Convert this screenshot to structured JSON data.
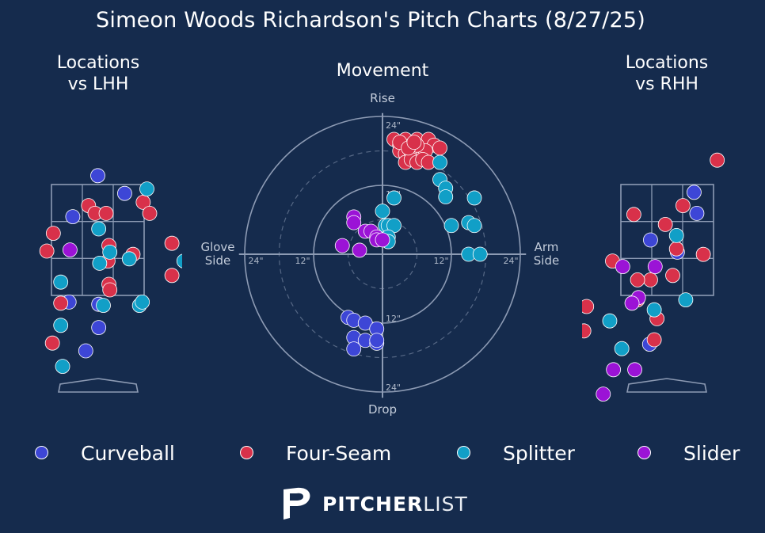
{
  "title": "Simeon Woods Richardson's Pitch Charts (8/27/25)",
  "colors": {
    "background": "#152b4d",
    "Curveball": "#3d46d6",
    "Four-Seam": "#d8314a",
    "Splitter": "#119fc7",
    "Slider": "#9b13d6",
    "grid": "#8d9bb4"
  },
  "panels": {
    "lhh_title": "Locations\nvs LHH",
    "movement_title": "Movement",
    "rhh_title": "Locations\nvs RHH"
  },
  "movement_labels": {
    "top": "Rise",
    "bottom": "Drop",
    "left": "Glove\nSide",
    "right": "Arm\nSide",
    "rings": [
      "12\"",
      "24\""
    ]
  },
  "legend": [
    {
      "name": "Curveball"
    },
    {
      "name": "Four-Seam"
    },
    {
      "name": "Splitter"
    },
    {
      "name": "Slider"
    }
  ],
  "brand": {
    "bold": "PITCHER",
    "light": "LIST"
  },
  "chart_data": [
    {
      "type": "scatter",
      "title": "Locations vs LHH",
      "units": "catcher view, horizontal x and vertical y in strike-zone box units (box spans x 0-1, y 0-1)",
      "series": [
        {
          "name": "Curveball",
          "points": [
            [
              0.5,
              1.08
            ],
            [
              0.79,
              0.92
            ],
            [
              0.23,
              0.71
            ],
            [
              0.19,
              -0.06
            ],
            [
              0.51,
              -0.08
            ],
            [
              0.51,
              -0.29
            ],
            [
              0.37,
              -0.5
            ]
          ]
        },
        {
          "name": "Four-Seam",
          "points": [
            [
              0.4,
              0.81
            ],
            [
              0.47,
              0.74
            ],
            [
              0.59,
              0.74
            ],
            [
              0.99,
              0.84
            ],
            [
              1.06,
              0.74
            ],
            [
              0.02,
              0.56
            ],
            [
              0.62,
              0.45
            ],
            [
              1.3,
              0.47
            ],
            [
              -0.05,
              0.4
            ],
            [
              0.88,
              0.37
            ],
            [
              0.61,
              0.31
            ],
            [
              0.62,
              0.1
            ],
            [
              0.63,
              0.05
            ],
            [
              0.1,
              -0.07
            ],
            [
              1.3,
              0.18
            ],
            [
              0.01,
              -0.43
            ]
          ]
        },
        {
          "name": "Splitter",
          "points": [
            [
              1.03,
              0.96
            ],
            [
              0.51,
              0.6
            ],
            [
              0.63,
              0.39
            ],
            [
              0.52,
              0.29
            ],
            [
              0.84,
              0.33
            ],
            [
              0.1,
              0.12
            ],
            [
              0.56,
              -0.09
            ],
            [
              0.95,
              -0.09
            ],
            [
              0.98,
              -0.06
            ],
            [
              0.1,
              -0.27
            ],
            [
              0.12,
              -0.64
            ],
            [
              1.43,
              0.31
            ]
          ]
        },
        {
          "name": "Slider",
          "points": [
            [
              0.2,
              0.41
            ]
          ]
        }
      ]
    },
    {
      "type": "scatter",
      "title": "Movement",
      "units": "inches, x positive = arm side, y positive = rise",
      "rings": [
        12,
        24
      ],
      "series": [
        {
          "name": "Curveball",
          "points": [
            [
              -6,
              -11
            ],
            [
              -5,
              -11.5
            ],
            [
              -3,
              -12
            ],
            [
              -1,
              -13
            ],
            [
              -5,
              -14.5
            ],
            [
              -3,
              -15
            ],
            [
              -1,
              -15.5
            ],
            [
              -5,
              -16.5
            ],
            [
              -1,
              -15
            ]
          ]
        },
        {
          "name": "Four-Seam",
          "points": [
            [
              2,
              20
            ],
            [
              3,
              19
            ],
            [
              4,
              20
            ],
            [
              5,
              19
            ],
            [
              6,
              20
            ],
            [
              8,
              20
            ],
            [
              9,
              19
            ],
            [
              10,
              18.5
            ],
            [
              3,
              18
            ],
            [
              4,
              17.5
            ],
            [
              5,
              17
            ],
            [
              6,
              18
            ],
            [
              7,
              17
            ],
            [
              7.5,
              18
            ],
            [
              4,
              16
            ],
            [
              5,
              16.5
            ],
            [
              6,
              16
            ],
            [
              7,
              16.5
            ],
            [
              8,
              16
            ],
            [
              3,
              19.5
            ],
            [
              6,
              19
            ],
            [
              4.5,
              18.5
            ],
            [
              5.5,
              19.5
            ]
          ]
        },
        {
          "name": "Splitter",
          "points": [
            [
              10,
              13
            ],
            [
              11,
              11.5
            ],
            [
              11,
              10
            ],
            [
              16,
              9.8
            ],
            [
              2,
              9.8
            ],
            [
              12,
              5
            ],
            [
              15,
              5.5
            ],
            [
              16,
              5
            ],
            [
              15,
              0
            ],
            [
              17,
              0
            ],
            [
              0,
              7.5
            ],
            [
              0.5,
              5
            ],
            [
              1,
              5
            ],
            [
              2,
              5
            ],
            [
              1,
              3
            ],
            [
              1,
              2.2
            ],
            [
              10,
              16
            ]
          ]
        },
        {
          "name": "Slider",
          "points": [
            [
              -5,
              6.5
            ],
            [
              -5,
              5.5
            ],
            [
              -3,
              4
            ],
            [
              -2,
              4
            ],
            [
              -1,
              3
            ],
            [
              -1,
              2.5
            ],
            [
              0,
              2.5
            ],
            [
              -7,
              1.5
            ],
            [
              -4,
              0.7
            ]
          ]
        }
      ]
    },
    {
      "type": "scatter",
      "title": "Locations vs RHH",
      "units": "catcher view, horizontal x and vertical y in strike-zone box units (box spans x 0-1, y 0-1)",
      "series": [
        {
          "name": "Curveball",
          "points": [
            [
              0.79,
              0.93
            ],
            [
              0.82,
              0.74
            ],
            [
              0.32,
              0.5
            ],
            [
              0.61,
              0.39
            ],
            [
              0.31,
              -0.44
            ]
          ]
        },
        {
          "name": "Four-Seam",
          "points": [
            [
              1.04,
              1.22
            ],
            [
              0.67,
              0.81
            ],
            [
              0.14,
              0.73
            ],
            [
              0.48,
              0.64
            ],
            [
              0.6,
              0.42
            ],
            [
              0.89,
              0.37
            ],
            [
              -0.09,
              0.31
            ],
            [
              0.32,
              0.14
            ],
            [
              0.56,
              0.18
            ],
            [
              0.18,
              0.14
            ],
            [
              -0.37,
              -0.1
            ],
            [
              0.18,
              -0.04
            ],
            [
              0.39,
              -0.21
            ],
            [
              -0.4,
              -0.32
            ],
            [
              0.36,
              -0.4
            ]
          ]
        },
        {
          "name": "Splitter",
          "points": [
            [
              0.6,
              0.54
            ],
            [
              0.7,
              -0.04
            ],
            [
              -0.12,
              -0.23
            ],
            [
              0.36,
              -0.13
            ],
            [
              0.01,
              -0.48
            ]
          ]
        },
        {
          "name": "Slider",
          "points": [
            [
              0.02,
              0.26
            ],
            [
              0.37,
              0.26
            ],
            [
              0.19,
              -0.02
            ],
            [
              0.12,
              -0.07
            ],
            [
              -0.08,
              -0.67
            ],
            [
              0.15,
              -0.67
            ],
            [
              -0.19,
              -0.89
            ]
          ]
        }
      ]
    }
  ]
}
